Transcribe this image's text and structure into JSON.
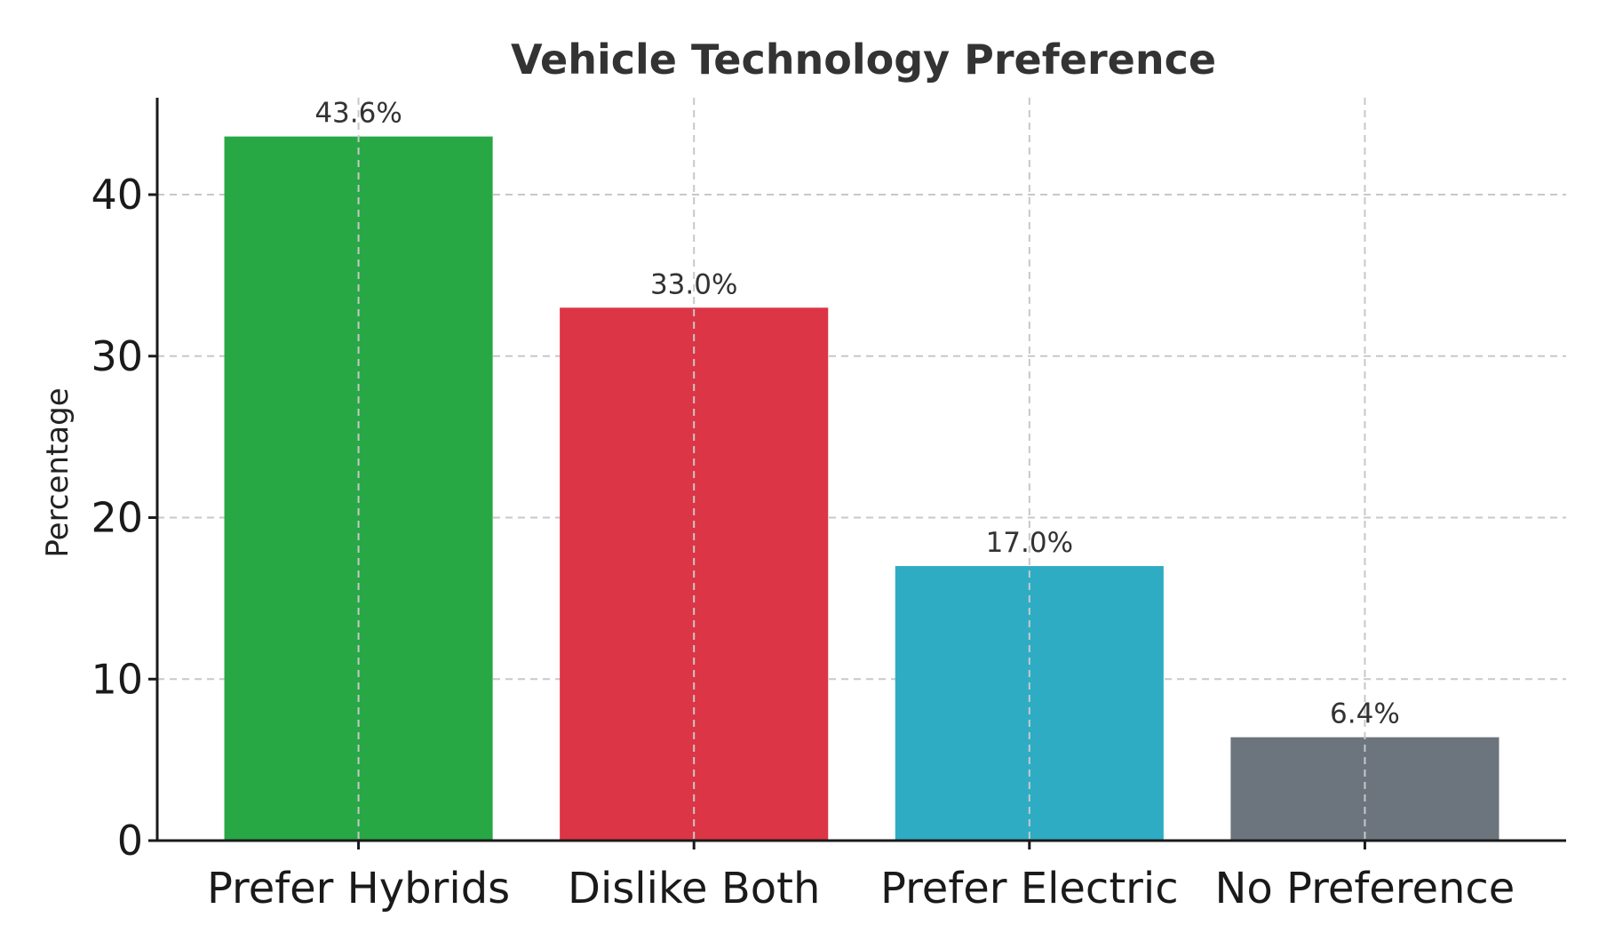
{
  "chart_data": {
    "type": "bar",
    "title": "Vehicle Technology Preference",
    "xlabel": "",
    "ylabel": "Percentage",
    "categories": [
      "Prefer Hybrids",
      "Dislike Both",
      "Prefer Electric",
      "No Preference"
    ],
    "values": [
      43.6,
      33.0,
      17.0,
      6.4
    ],
    "data_labels": [
      "43.6%",
      "33.0%",
      "17.0%",
      "6.4%"
    ],
    "colors": [
      "#28a745",
      "#dc3545",
      "#2eacc4",
      "#6c757d"
    ],
    "ylim": [
      0,
      46
    ],
    "yticks": [
      0,
      10,
      20,
      30,
      40
    ],
    "ytick_labels": [
      "0",
      "10",
      "20",
      "30",
      "40"
    ],
    "grid": true,
    "legend": "none"
  }
}
